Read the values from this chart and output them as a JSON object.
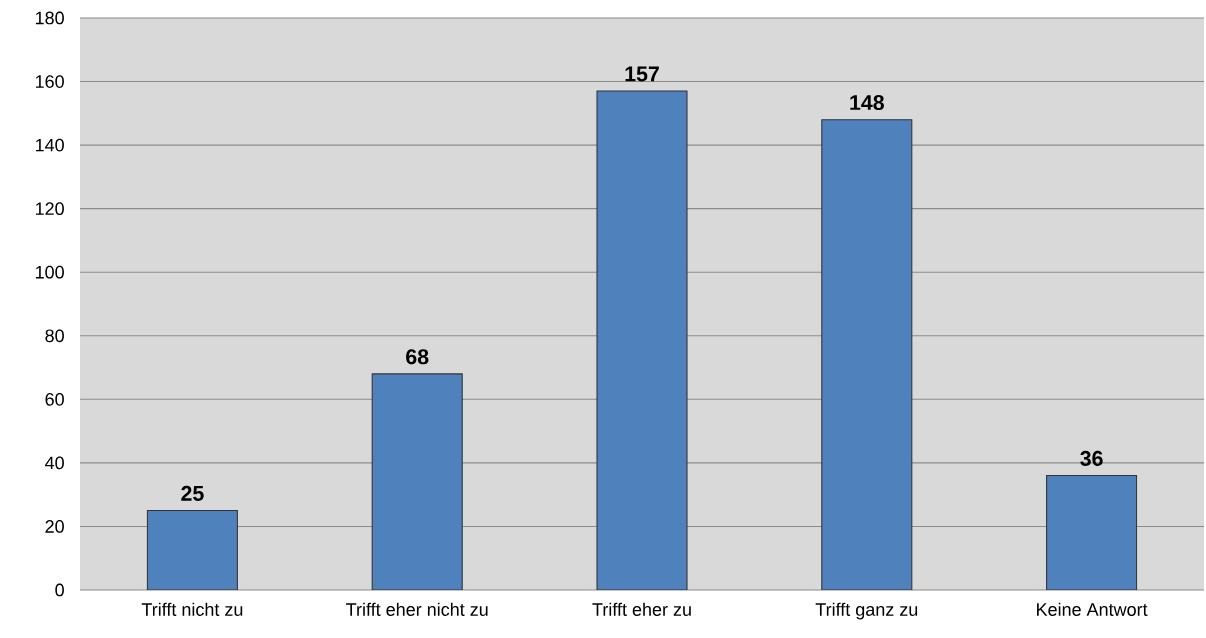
{
  "chart_data": {
    "type": "bar",
    "categories": [
      "Trifft nicht zu",
      "Trifft eher nicht zu",
      "Trifft eher zu",
      "Trifft ganz zu",
      "Keine Antwort"
    ],
    "values": [
      25,
      68,
      157,
      148,
      36
    ],
    "color": "#4f81bd",
    "ylim": [
      0,
      180
    ],
    "yticks": [
      0,
      20,
      40,
      60,
      80,
      100,
      120,
      140,
      160,
      180
    ],
    "grid": "y",
    "data_labels": true
  }
}
